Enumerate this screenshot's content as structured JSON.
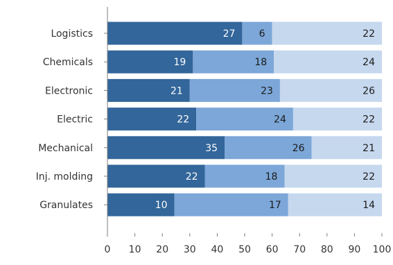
{
  "chart_data": {
    "type": "bar",
    "orientation": "horizontal",
    "stacked": "percent",
    "categories": [
      "Logistics",
      "Chemicals",
      "Electronic",
      "Electric",
      "Mechanical",
      "Inj. molding",
      "Granulates"
    ],
    "series": [
      {
        "values": [
          27,
          19,
          21,
          22,
          35,
          22,
          10
        ],
        "color": "#33669a"
      },
      {
        "values": [
          6,
          18,
          23,
          24,
          26,
          18,
          17
        ],
        "color": "#7ca7d8"
      },
      {
        "values": [
          22,
          24,
          26,
          22,
          21,
          22,
          14
        ],
        "color": "#c6d8ee"
      }
    ],
    "label_colors": [
      "#ffffff",
      "#1a1a1a",
      "#1a1a1a"
    ],
    "xticks": [
      "0",
      "10",
      "20",
      "30",
      "40",
      "50",
      "60",
      "70",
      "80",
      "90",
      "100"
    ],
    "xlim": [
      0,
      100
    ],
    "grid": false,
    "legend": "none"
  }
}
